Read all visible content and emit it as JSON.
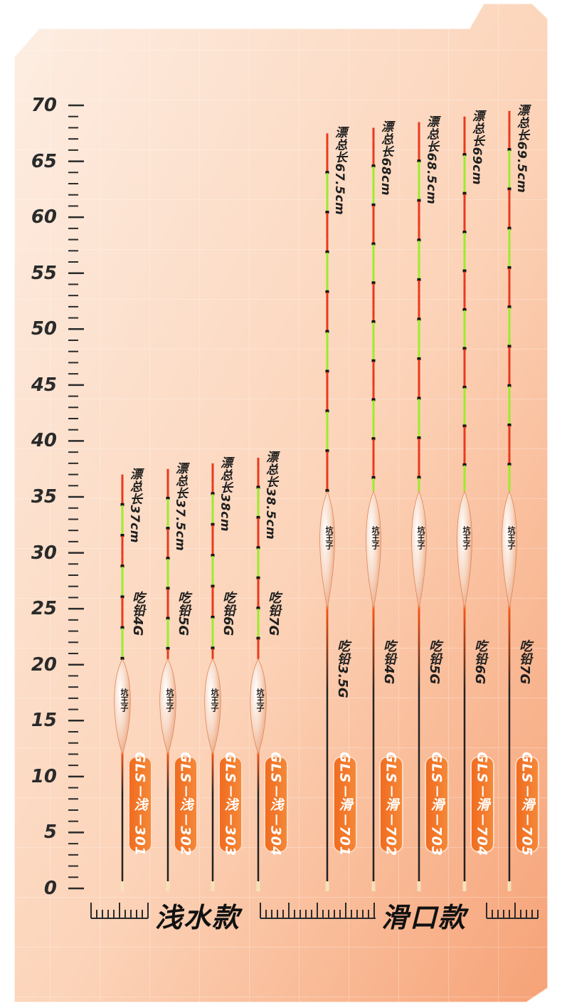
{
  "ruler": {
    "labels": [
      "70",
      "65",
      "60",
      "55",
      "50",
      "45",
      "40",
      "35",
      "30",
      "25",
      "20",
      "15",
      "10",
      "5",
      "0"
    ]
  },
  "sections": {
    "shallow": "浅水款",
    "slide": "滑口款"
  },
  "colors": {
    "accent": "#f06a1e",
    "panel_light": "#fde6d8",
    "panel_dark": "#f6a276",
    "stem_red": "#e8391c",
    "stem_green": "#9bec2a",
    "float_body": "#f7d6c1"
  },
  "floats": [
    {
      "total_length": "漂总长37cm",
      "lead": "吃铅4G",
      "model": "GLS－浅－301",
      "brand": "坑王子",
      "length_cm": 37
    },
    {
      "total_length": "漂总长37.5cm",
      "lead": "吃铅5G",
      "model": "GLS－浅－302",
      "brand": "坑王子",
      "length_cm": 37.5
    },
    {
      "total_length": "漂总长38cm",
      "lead": "吃铅6G",
      "model": "GLS－浅－303",
      "brand": "坑王子",
      "length_cm": 38
    },
    {
      "total_length": "漂总长38.5cm",
      "lead": "吃铅7G",
      "model": "GLS－浅－304",
      "brand": "坑王子",
      "length_cm": 38.5
    },
    {
      "total_length": "漂总长67.5cm",
      "lead": "吃铅3.5G",
      "model": "GLS－滑－701",
      "brand": "坑王子",
      "length_cm": 67.5
    },
    {
      "total_length": "漂总长68cm",
      "lead": "吃铅4G",
      "model": "GLS－滑－702",
      "brand": "坑王子",
      "length_cm": 68
    },
    {
      "total_length": "漂总长68.5cm",
      "lead": "吃铅5G",
      "model": "GLS－滑－703",
      "brand": "坑王子",
      "length_cm": 68.5
    },
    {
      "total_length": "漂总长69cm",
      "lead": "吃铅6G",
      "model": "GLS－滑－704",
      "brand": "坑王子",
      "length_cm": 69
    },
    {
      "total_length": "漂总长69.5cm",
      "lead": "吃铅7G",
      "model": "GLS－滑－705",
      "brand": "坑王子",
      "length_cm": 69.5
    }
  ]
}
